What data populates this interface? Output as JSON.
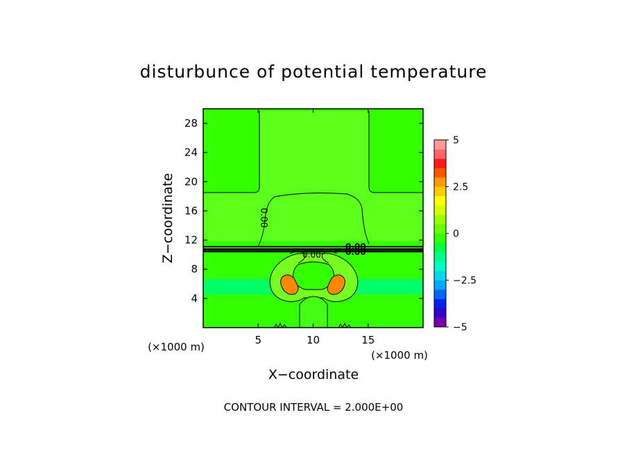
{
  "chart_data": {
    "type": "heatmap",
    "title": "disturbunce of potential temperature",
    "xlabel": "X−coordinate",
    "ylabel": "Z−coordinate",
    "x_unit": "(×1000 m)",
    "y_unit": "(×1000 m)",
    "xlim": [
      0,
      20
    ],
    "ylim": [
      0,
      30
    ],
    "xticks": [
      5,
      10,
      15
    ],
    "yticks": [
      4,
      8,
      12,
      16,
      20,
      24,
      28
    ],
    "contour_interval_text": "CONTOUR INTERVAL = 2.000E+00",
    "contour_label": "0.00",
    "colorbar": {
      "range": [
        -5,
        5
      ],
      "tick_values": [
        5,
        2.5,
        0,
        -2.5,
        -5
      ],
      "tick_labels": [
        "5",
        "2.5",
        "0",
        "−2.5",
        "−5"
      ],
      "colors": [
        "#7700aa",
        "#3300cc",
        "#0022ee",
        "#0066ff",
        "#00a8ff",
        "#00d8e8",
        "#00ffc4",
        "#00ff88",
        "#00ff40",
        "#33ff00",
        "#66ff00",
        "#99ff00",
        "#d4ff00",
        "#ffff00",
        "#ffcc00",
        "#ff9900",
        "#ff5500",
        "#ff1a1a",
        "#ff6666",
        "#ff9a9a"
      ]
    },
    "regions": [
      {
        "label": "background",
        "value": 0.4,
        "color": "#33ff00"
      },
      {
        "label": "upper plume",
        "value": 0.8,
        "color": "#5bff19"
      },
      {
        "label": "warm ring",
        "value": 1.2,
        "color": "#77ff22"
      },
      {
        "label": "cool band z 5-7",
        "value": -0.8,
        "color": "#00ff88"
      },
      {
        "label": "cool band z 12-13",
        "value": -0.5,
        "color": "#44ffcc"
      },
      {
        "label": "vortex cores",
        "value": 3.0,
        "color": "#ff8800"
      }
    ]
  }
}
